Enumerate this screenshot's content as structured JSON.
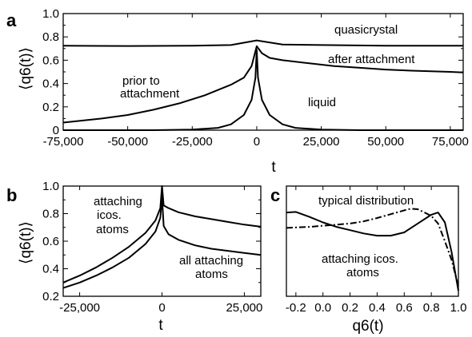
{
  "chart_data": [
    {
      "panel_label": "a",
      "type": "line",
      "xlabel": "t",
      "ylabel": "⟨q6(t)⟩",
      "xlim": [
        -75000,
        80000
      ],
      "ylim": [
        0,
        1.0
      ],
      "xticks": [
        -75000,
        -50000,
        -25000,
        0,
        25000,
        50000,
        75000
      ],
      "xtick_labels": [
        "-75,000",
        "-50,000",
        "-25,000",
        "0",
        "25,000",
        "50,000",
        "75,000"
      ],
      "yticks": [
        0,
        0.1,
        0.2,
        0.3,
        0.4,
        0.5,
        0.6,
        0.7,
        0.8,
        0.9,
        1.0
      ],
      "ytick_labels": [
        "0",
        "",
        "0.2",
        "",
        "0.4",
        "",
        "0.6",
        "",
        "0.8",
        "",
        "1.0"
      ],
      "series": [
        {
          "x": [
            -75000,
            -50000,
            -25000,
            -10000,
            0,
            10000,
            25000,
            50000,
            75000,
            80000
          ],
          "y": [
            0.725,
            0.722,
            0.725,
            0.73,
            0.77,
            0.735,
            0.73,
            0.725,
            0.725,
            0.725
          ]
        },
        {
          "x": [
            -75000,
            -60000,
            -50000,
            -40000,
            -30000,
            -20000,
            -10000,
            -5000,
            -2000,
            0,
            2000,
            5000,
            10000,
            20000,
            30000,
            40000,
            50000,
            60000,
            75000,
            80000
          ],
          "y": [
            0.065,
            0.1,
            0.13,
            0.175,
            0.23,
            0.3,
            0.39,
            0.45,
            0.55,
            0.72,
            0.66,
            0.62,
            0.6,
            0.575,
            0.55,
            0.535,
            0.52,
            0.51,
            0.5,
            0.495
          ]
        },
        {
          "x": [
            -75000,
            -40000,
            -25000,
            -15000,
            -10000,
            -5000,
            -2000,
            -500,
            0,
            500,
            2000,
            5000,
            10000,
            15000,
            25000,
            40000,
            75000,
            80000
          ],
          "y": [
            0.0,
            0.0,
            0.005,
            0.02,
            0.05,
            0.13,
            0.26,
            0.45,
            0.69,
            0.45,
            0.26,
            0.13,
            0.05,
            0.02,
            0.005,
            0.0,
            0.0,
            0.0
          ]
        }
      ],
      "annotations": [
        "quasicrystal",
        "after attachment",
        "prior to",
        "attachment",
        "liquid"
      ]
    },
    {
      "panel_label": "b",
      "type": "line",
      "xlabel": "t",
      "ylabel": "⟨q6(t)⟩",
      "xlim": [
        -30000,
        30000
      ],
      "ylim": [
        0.2,
        1.0
      ],
      "xticks": [
        -25000,
        0,
        25000
      ],
      "xtick_labels": [
        "-25,000",
        "0",
        "25,000"
      ],
      "yticks": [
        0.2,
        0.3,
        0.4,
        0.5,
        0.6,
        0.7,
        0.8,
        0.9,
        1.0
      ],
      "ytick_labels": [
        "0.2",
        "",
        "0.4",
        "",
        "0.6",
        "",
        "0.8",
        "",
        "1.0"
      ],
      "series": [
        {
          "x": [
            -30000,
            -25000,
            -20000,
            -15000,
            -10000,
            -5000,
            -2000,
            -500,
            0,
            500,
            2000,
            5000,
            10000,
            15000,
            20000,
            25000,
            30000
          ],
          "y": [
            0.3,
            0.35,
            0.41,
            0.48,
            0.56,
            0.66,
            0.75,
            0.84,
            1.0,
            0.86,
            0.84,
            0.81,
            0.78,
            0.76,
            0.74,
            0.72,
            0.705
          ]
        },
        {
          "x": [
            -30000,
            -25000,
            -20000,
            -15000,
            -10000,
            -5000,
            -2000,
            -500,
            0,
            500,
            2000,
            5000,
            10000,
            15000,
            20000,
            25000,
            30000
          ],
          "y": [
            0.26,
            0.3,
            0.35,
            0.41,
            0.48,
            0.58,
            0.67,
            0.77,
            0.92,
            0.71,
            0.65,
            0.61,
            0.57,
            0.545,
            0.53,
            0.515,
            0.5
          ]
        }
      ],
      "annotations": [
        "attaching",
        "icos.",
        "atoms",
        "all attaching",
        "atoms"
      ]
    },
    {
      "panel_label": "c",
      "type": "line",
      "xlabel": "q6(t)",
      "xlim": [
        -0.27,
        1.0
      ],
      "ylim": [
        0,
        1
      ],
      "xticks": [
        -0.2,
        0.0,
        0.2,
        0.4,
        0.6,
        0.8,
        1.0
      ],
      "xtick_labels": [
        "-0.2",
        "0.0",
        "0.2",
        "0.4",
        "0.6",
        "0.8",
        "1.0"
      ],
      "series": [
        {
          "x": [
            -0.27,
            -0.2,
            -0.1,
            0.0,
            0.1,
            0.2,
            0.3,
            0.4,
            0.5,
            0.6,
            0.7,
            0.8,
            0.85,
            0.9,
            0.95,
            1.0
          ],
          "y": [
            0.76,
            0.765,
            0.72,
            0.67,
            0.63,
            0.6,
            0.57,
            0.55,
            0.55,
            0.58,
            0.66,
            0.74,
            0.76,
            0.67,
            0.4,
            0.05
          ]
        },
        {
          "x": [
            -0.27,
            -0.2,
            -0.1,
            0.0,
            0.1,
            0.2,
            0.3,
            0.4,
            0.5,
            0.6,
            0.65,
            0.7,
            0.8,
            0.85,
            0.9,
            0.95,
            1.0
          ],
          "y": [
            0.62,
            0.625,
            0.63,
            0.64,
            0.65,
            0.66,
            0.68,
            0.71,
            0.745,
            0.78,
            0.795,
            0.79,
            0.73,
            0.66,
            0.5,
            0.33,
            0.09
          ]
        }
      ],
      "annotations": [
        "typical distribution",
        "attaching icos.",
        "atoms"
      ]
    }
  ]
}
